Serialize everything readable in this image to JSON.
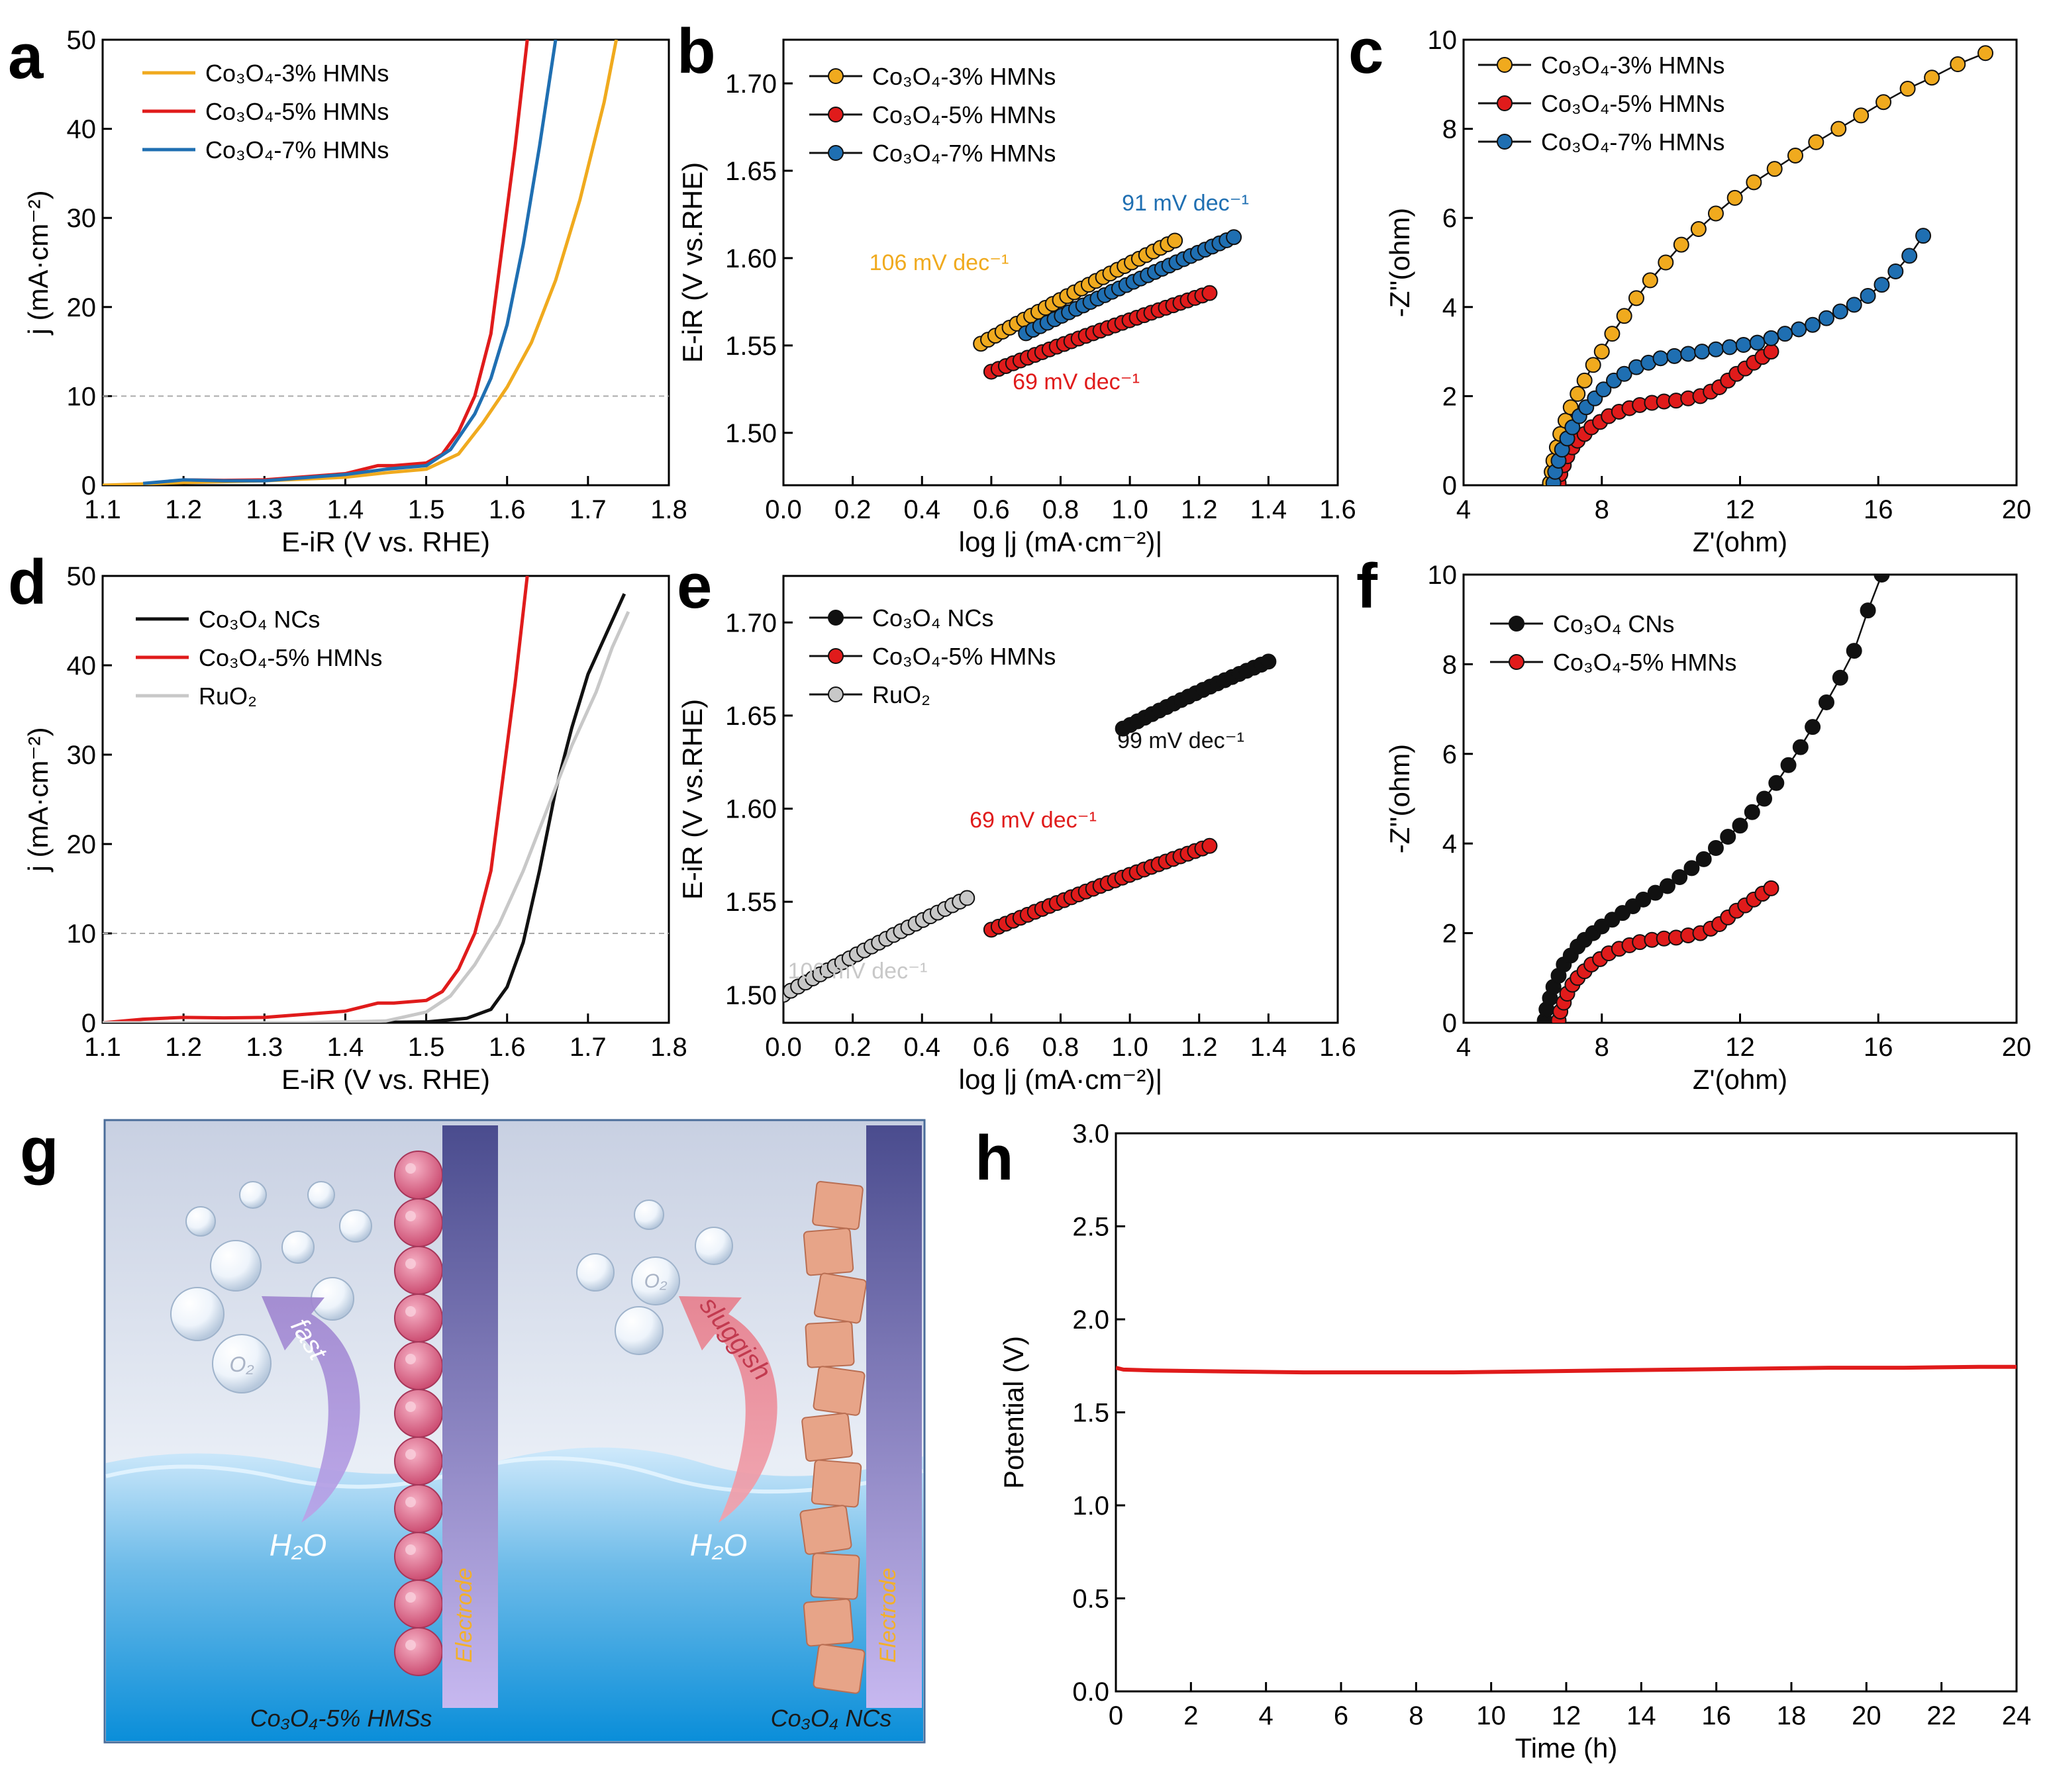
{
  "panel_letters": {
    "a": "a",
    "b": "b",
    "c": "c",
    "d": "d",
    "e": "e",
    "f": "f",
    "g": "g",
    "h": "h"
  },
  "colors": {
    "orange": "#f0aa1e",
    "red": "#e01b1b",
    "blue": "#1f6fb2",
    "black": "#111111",
    "gray": "#c8c8c8"
  },
  "chart_data": [
    {
      "id": "a",
      "type": "line",
      "xlabel": "E-iR (V vs. RHE)",
      "ylabel": "j (mA·cm⁻²)",
      "xlim": [
        1.1,
        1.8
      ],
      "ylim": [
        0,
        50
      ],
      "xticks": [
        "1.1",
        "1.2",
        "1.3",
        "1.4",
        "1.5",
        "1.6",
        "1.7",
        "1.8"
      ],
      "yticks": [
        "0",
        "10",
        "20",
        "30",
        "40",
        "50"
      ],
      "reference_line": {
        "y": 10,
        "style": "dashed"
      },
      "series": [
        {
          "name": "Co₃O₄-3% HMNs",
          "color": "#f0aa1e",
          "x": [
            1.1,
            1.2,
            1.3,
            1.4,
            1.45,
            1.5,
            1.54,
            1.57,
            1.6,
            1.63,
            1.66,
            1.69,
            1.72,
            1.735
          ],
          "y": [
            0,
            0.3,
            0.5,
            0.9,
            1.4,
            1.8,
            3.5,
            7,
            11,
            16,
            23,
            32,
            43,
            50
          ]
        },
        {
          "name": "Co₃O₄-5% HMNs",
          "color": "#e01b1b",
          "x": [
            1.2,
            1.25,
            1.3,
            1.4,
            1.44,
            1.46,
            1.5,
            1.52,
            1.54,
            1.56,
            1.58,
            1.59,
            1.6,
            1.61,
            1.62,
            1.625
          ],
          "y": [
            0.6,
            0.55,
            0.6,
            1.3,
            2.2,
            2.2,
            2.5,
            3.5,
            6,
            10,
            17,
            24,
            31,
            38,
            46,
            50
          ]
        },
        {
          "name": "Co₃O₄-7% HMNs",
          "color": "#1f6fb2",
          "x": [
            1.15,
            1.2,
            1.25,
            1.3,
            1.4,
            1.45,
            1.5,
            1.53,
            1.56,
            1.58,
            1.6,
            1.62,
            1.64,
            1.655,
            1.66
          ],
          "y": [
            0.2,
            0.6,
            0.5,
            0.5,
            1.2,
            1.8,
            2.2,
            4,
            8,
            12,
            18,
            27,
            38,
            47,
            50
          ]
        }
      ]
    },
    {
      "id": "b",
      "type": "scatter",
      "xlabel": "log |j (mA·cm⁻²)|",
      "ylabel": "E-iR (V vs.RHE)",
      "xlim": [
        0,
        1.6
      ],
      "ylim": [
        1.47,
        1.725
      ],
      "xticks": [
        "0.0",
        "0.2",
        "0.4",
        "0.6",
        "0.8",
        "1.0",
        "1.2",
        "1.4",
        "1.6"
      ],
      "yticks": [
        "1.50",
        "1.55",
        "1.60",
        "1.65",
        "1.70"
      ],
      "annotations": [
        {
          "text": "106 mV dec⁻¹",
          "color": "#f0aa1e",
          "x": 0.43,
          "y": 1.6
        },
        {
          "text": "91 mV dec⁻¹",
          "color": "#1f6fb2",
          "x": 1.13,
          "y": 1.628
        },
        {
          "text": "69 mV dec⁻¹",
          "color": "#e01b1b",
          "x": 0.83,
          "y": 1.537
        }
      ],
      "series": [
        {
          "name": "Co₃O₄-3% HMNs",
          "color": "#f0aa1e",
          "x0": 0.57,
          "y0": 1.551,
          "x1": 1.13,
          "y1": 1.61
        },
        {
          "name": "Co₃O₄-5% HMNs",
          "color": "#e01b1b",
          "x0": 0.6,
          "y0": 1.535,
          "x1": 1.23,
          "y1": 1.58
        },
        {
          "name": "Co₃O₄-7% HMNs",
          "color": "#1f6fb2",
          "x0": 0.7,
          "y0": 1.557,
          "x1": 1.3,
          "y1": 1.612
        }
      ]
    },
    {
      "id": "c",
      "type": "scatter",
      "xlabel": "Z'(ohm)",
      "ylabel": "-Z''(ohm)",
      "xlim": [
        4,
        20
      ],
      "ylim": [
        0,
        10
      ],
      "xticks": [
        "4",
        "8",
        "12",
        "16",
        "20"
      ],
      "yticks": [
        "0",
        "2",
        "4",
        "6",
        "8",
        "10"
      ],
      "series": [
        {
          "name": "Co₃O₄-3% HMNs",
          "color": "#f0aa1e",
          "x": [
            6.5,
            6.55,
            6.6,
            6.7,
            6.8,
            6.95,
            7.1,
            7.3,
            7.5,
            7.75,
            8.0,
            8.3,
            8.65,
            9.0,
            9.4,
            9.85,
            10.3,
            10.8,
            11.3,
            11.85,
            12.4,
            13.0,
            13.6,
            14.2,
            14.85,
            15.5,
            16.15,
            16.85,
            17.55,
            18.3,
            19.1
          ],
          "y": [
            0.05,
            0.3,
            0.55,
            0.85,
            1.15,
            1.45,
            1.75,
            2.05,
            2.35,
            2.7,
            3.0,
            3.4,
            3.8,
            4.2,
            4.6,
            5.0,
            5.4,
            5.75,
            6.1,
            6.45,
            6.8,
            7.1,
            7.4,
            7.7,
            8.0,
            8.3,
            8.6,
            8.9,
            9.15,
            9.45,
            9.7
          ]
        },
        {
          "name": "Co₃O₄-5% HMNs",
          "color": "#e01b1b",
          "x": [
            6.75,
            6.8,
            6.9,
            7.0,
            7.15,
            7.3,
            7.5,
            7.7,
            7.95,
            8.2,
            8.5,
            8.8,
            9.1,
            9.45,
            9.8,
            10.15,
            10.5,
            10.85,
            11.15,
            11.4,
            11.65,
            11.9,
            12.15,
            12.4,
            12.65,
            12.9
          ],
          "y": [
            0.05,
            0.25,
            0.45,
            0.65,
            0.85,
            1.0,
            1.15,
            1.3,
            1.42,
            1.55,
            1.65,
            1.73,
            1.8,
            1.85,
            1.88,
            1.9,
            1.95,
            2.0,
            2.1,
            2.2,
            2.35,
            2.5,
            2.62,
            2.75,
            2.88,
            3.0
          ]
        },
        {
          "name": "Co₃O₄-7% HMNs",
          "color": "#1f6fb2",
          "x": [
            6.6,
            6.65,
            6.75,
            6.85,
            7.0,
            7.15,
            7.35,
            7.55,
            7.8,
            8.05,
            8.35,
            8.65,
            9.0,
            9.35,
            9.7,
            10.1,
            10.5,
            10.9,
            11.3,
            11.7,
            12.1,
            12.5,
            12.9,
            13.3,
            13.7,
            14.1,
            14.5,
            14.9,
            15.3,
            15.7,
            16.1,
            16.5,
            16.9,
            17.3
          ],
          "y": [
            0.05,
            0.3,
            0.55,
            0.8,
            1.05,
            1.3,
            1.55,
            1.75,
            1.95,
            2.15,
            2.35,
            2.5,
            2.65,
            2.75,
            2.85,
            2.9,
            2.95,
            3.0,
            3.05,
            3.1,
            3.15,
            3.2,
            3.3,
            3.4,
            3.5,
            3.6,
            3.75,
            3.9,
            4.05,
            4.25,
            4.5,
            4.8,
            5.15,
            5.6
          ]
        }
      ]
    },
    {
      "id": "d",
      "type": "line",
      "xlabel": "E-iR (V vs. RHE)",
      "ylabel": "j (mA·cm⁻²)",
      "xlim": [
        1.1,
        1.8
      ],
      "ylim": [
        0,
        50
      ],
      "xticks": [
        "1.1",
        "1.2",
        "1.3",
        "1.4",
        "1.5",
        "1.6",
        "1.7",
        "1.8"
      ],
      "yticks": [
        "0",
        "10",
        "20",
        "30",
        "40",
        "50"
      ],
      "reference_line": {
        "y": 10,
        "style": "dashed"
      },
      "series": [
        {
          "name": "Co₃O₄ NCs",
          "color": "#111111",
          "x": [
            1.1,
            1.4,
            1.5,
            1.55,
            1.58,
            1.6,
            1.62,
            1.64,
            1.66,
            1.68,
            1.7,
            1.72,
            1.74,
            1.745
          ],
          "y": [
            0,
            0,
            0.1,
            0.5,
            1.5,
            4,
            9,
            17,
            26,
            33,
            39,
            43,
            47,
            48
          ]
        },
        {
          "name": "Co₃O₄-5% HMNs",
          "color": "#e01b1b",
          "x": [
            1.1,
            1.15,
            1.2,
            1.25,
            1.3,
            1.4,
            1.44,
            1.46,
            1.5,
            1.52,
            1.54,
            1.56,
            1.58,
            1.59,
            1.6,
            1.61,
            1.62,
            1.625
          ],
          "y": [
            0,
            0.4,
            0.6,
            0.55,
            0.6,
            1.3,
            2.2,
            2.2,
            2.5,
            3.5,
            6,
            10,
            17,
            24,
            31,
            38,
            46,
            50
          ]
        },
        {
          "name": "RuO₂",
          "color": "#c8c8c8",
          "x": [
            1.1,
            1.35,
            1.45,
            1.5,
            1.53,
            1.56,
            1.59,
            1.62,
            1.65,
            1.68,
            1.71,
            1.73,
            1.75
          ],
          "y": [
            0,
            0,
            0.2,
            1.2,
            3,
            6.5,
            11,
            17,
            24,
            31,
            37,
            42,
            46
          ]
        }
      ]
    },
    {
      "id": "e",
      "type": "scatter",
      "xlabel": "log |j (mA·cm⁻²)|",
      "ylabel": "E-iR (V vs.RHE)",
      "xlim": [
        0,
        1.6
      ],
      "ylim": [
        1.485,
        1.725
      ],
      "xticks": [
        "0.0",
        "0.2",
        "0.4",
        "0.6",
        "0.8",
        "1.0",
        "1.2",
        "1.4",
        "1.6"
      ],
      "yticks": [
        "1.50",
        "1.55",
        "1.60",
        "1.65",
        "1.70"
      ],
      "annotations": [
        {
          "text": "99 mV dec⁻¹",
          "color": "#111111",
          "x": 1.14,
          "y": 1.628
        },
        {
          "text": "69 mV dec⁻¹",
          "color": "#e01b1b",
          "x": 0.72,
          "y": 1.585
        },
        {
          "text": "100 mV dec⁻¹",
          "color": "#c8c8c8",
          "x": 0.21,
          "y": 1.522
        }
      ],
      "series": [
        {
          "name": "Co₃O₄ NCs",
          "color": "#111111",
          "x0": 0.98,
          "y0": 1.643,
          "x1": 1.4,
          "y1": 1.679
        },
        {
          "name": "Co₃O₄-5% HMNs",
          "color": "#e01b1b",
          "x0": 0.6,
          "y0": 1.535,
          "x1": 1.23,
          "y1": 1.58
        },
        {
          "name": "RuO₂",
          "color": "#c8c8c8",
          "x0": 0.0,
          "y0": 1.5,
          "x1": 0.53,
          "y1": 1.552
        }
      ]
    },
    {
      "id": "f",
      "type": "scatter",
      "xlabel": "Z'(ohm)",
      "ylabel": "-Z''(ohm)",
      "xlim": [
        4,
        20
      ],
      "ylim": [
        0,
        10
      ],
      "xticks": [
        "4",
        "8",
        "12",
        "16",
        "20"
      ],
      "yticks": [
        "0",
        "2",
        "4",
        "6",
        "8",
        "10"
      ],
      "series": [
        {
          "name": "Co₃O₄ CNs",
          "color": "#111111",
          "x": [
            6.35,
            6.4,
            6.5,
            6.6,
            6.75,
            6.9,
            7.1,
            7.3,
            7.5,
            7.75,
            8.0,
            8.3,
            8.6,
            8.9,
            9.2,
            9.55,
            9.9,
            10.25,
            10.6,
            10.95,
            11.3,
            11.65,
            12.0,
            12.35,
            12.7,
            13.05,
            13.4,
            13.75,
            14.1,
            14.5,
            14.9,
            15.3,
            15.7,
            16.1
          ],
          "y": [
            0.05,
            0.3,
            0.55,
            0.8,
            1.05,
            1.3,
            1.5,
            1.7,
            1.85,
            2.0,
            2.15,
            2.3,
            2.45,
            2.6,
            2.75,
            2.9,
            3.05,
            3.25,
            3.45,
            3.65,
            3.9,
            4.15,
            4.4,
            4.7,
            5.0,
            5.35,
            5.75,
            6.15,
            6.6,
            7.15,
            7.7,
            8.3,
            9.2,
            10.0
          ]
        },
        {
          "name": "Co₃O₄-5% HMNs",
          "color": "#e01b1b",
          "x": [
            6.75,
            6.8,
            6.9,
            7.0,
            7.15,
            7.3,
            7.5,
            7.7,
            7.95,
            8.2,
            8.5,
            8.8,
            9.1,
            9.45,
            9.8,
            10.15,
            10.5,
            10.85,
            11.15,
            11.4,
            11.65,
            11.9,
            12.15,
            12.4,
            12.65,
            12.9
          ],
          "y": [
            0.05,
            0.25,
            0.45,
            0.65,
            0.85,
            1.0,
            1.15,
            1.3,
            1.42,
            1.55,
            1.65,
            1.73,
            1.8,
            1.85,
            1.88,
            1.9,
            1.95,
            2.0,
            2.1,
            2.2,
            2.35,
            2.5,
            2.62,
            2.75,
            2.88,
            3.0
          ]
        }
      ]
    },
    {
      "id": "h",
      "type": "line",
      "xlabel": "Time (h)",
      "ylabel": "Potential (V)",
      "xlim": [
        0,
        24
      ],
      "ylim": [
        0,
        3.0
      ],
      "xticks": [
        "0",
        "2",
        "4",
        "6",
        "8",
        "10",
        "12",
        "14",
        "16",
        "18",
        "20",
        "22",
        "24"
      ],
      "yticks": [
        "0.0",
        "0.5",
        "1.0",
        "1.5",
        "2.0",
        "2.5",
        "3.0"
      ],
      "series": [
        {
          "name": "Potential",
          "color": "#e01b1b",
          "x": [
            0,
            0.2,
            1,
            3,
            5,
            7,
            9,
            11,
            13,
            15,
            17,
            19,
            21,
            23,
            24
          ],
          "y": [
            1.74,
            1.73,
            1.725,
            1.72,
            1.715,
            1.715,
            1.715,
            1.72,
            1.725,
            1.73,
            1.735,
            1.74,
            1.74,
            1.745,
            1.745
          ]
        }
      ]
    }
  ],
  "illustration_g": {
    "labels": {
      "fast": "fast",
      "sluggish": "sluggish",
      "h2o_left": "H₂O",
      "h2o_right": "H₂O",
      "o2_left": "O₂",
      "o2_right": "O₂",
      "electrode_left": "Electrode",
      "electrode_right": "Electrode",
      "caption_left": "Co₃O₄-5% HMSs",
      "caption_right": "Co₃O₄ NCs"
    }
  }
}
